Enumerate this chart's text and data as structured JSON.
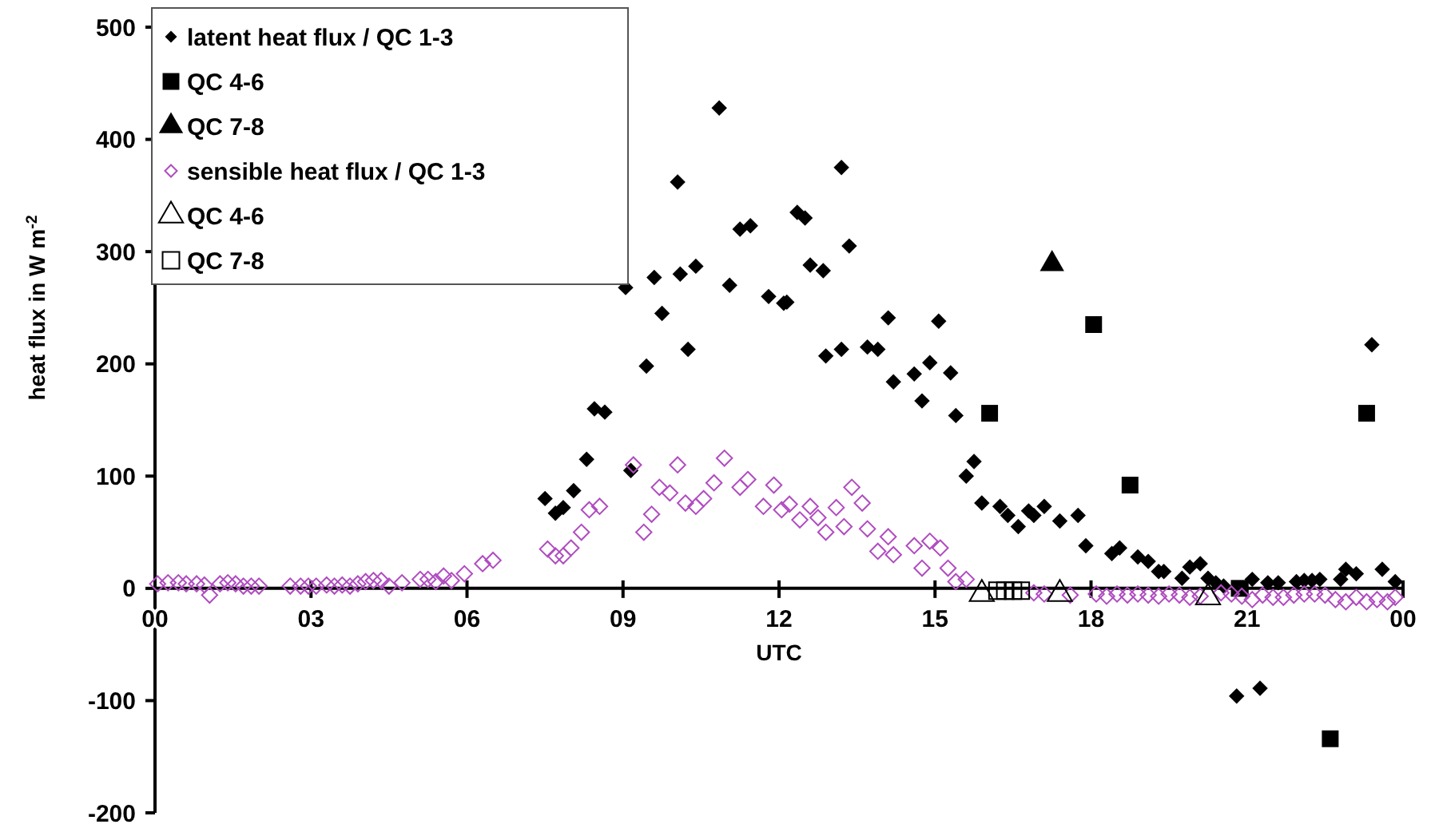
{
  "chart_data": {
    "type": "scatter",
    "xlabel": "UTC",
    "ylabel": "heat flux in W m$^{-2}$",
    "xlim": [
      0,
      24
    ],
    "xticks": [
      {
        "value": 0,
        "label": "00"
      },
      {
        "value": 3,
        "label": "03"
      },
      {
        "value": 6,
        "label": "06"
      },
      {
        "value": 9,
        "label": "09"
      },
      {
        "value": 12,
        "label": "12"
      },
      {
        "value": 15,
        "label": "15"
      },
      {
        "value": 18,
        "label": "18"
      },
      {
        "value": 21,
        "label": "21"
      },
      {
        "value": 24,
        "label": "00"
      }
    ],
    "ylim": [
      -200,
      500
    ],
    "yticks": [
      -200,
      -100,
      0,
      100,
      200,
      300,
      400,
      500
    ],
    "grid": false,
    "legend": "top left",
    "series": [
      {
        "name": "latent heat flux / QC 1-3",
        "color": "#000000",
        "marker": "diamond",
        "x": [
          7.5,
          7.7,
          7.85,
          8.05,
          8.3,
          8.45,
          8.65,
          9.05,
          9.15,
          9.45,
          9.6,
          9.75,
          10.05,
          10.1,
          10.25,
          10.4,
          10.85,
          11.05,
          11.25,
          11.45,
          11.8,
          12.09,
          12.15,
          12.35,
          12.5,
          12.6,
          12.85,
          12.9,
          13.2,
          13.2,
          13.35,
          13.7,
          13.9,
          14.1,
          14.2,
          14.6,
          14.75,
          14.9,
          15.07,
          15.3,
          15.4,
          15.6,
          15.75,
          15.9,
          16.25,
          16.4,
          16.6,
          16.8,
          16.9,
          17.1,
          17.4,
          17.75,
          17.9,
          18.4,
          18.55,
          18.9,
          19.1,
          19.3,
          19.4,
          19.75,
          19.9,
          20.1,
          20.25,
          20.4,
          20.55,
          21.1,
          21.4,
          21.6,
          21.95,
          22.1,
          22.25,
          22.4,
          22.8,
          22.9,
          23.1,
          23.4,
          23.6,
          23.85,
          20.8,
          21.25
        ],
        "values": [
          80,
          67,
          72,
          87,
          115,
          160,
          157,
          268,
          105,
          198,
          277,
          245,
          362,
          280,
          213,
          287,
          428,
          270,
          320,
          323,
          260,
          254,
          255,
          335,
          330,
          288,
          283,
          207,
          213,
          375,
          305,
          215,
          213,
          241,
          184,
          191,
          167,
          201,
          238,
          192,
          154,
          100,
          113,
          76,
          73,
          65,
          55,
          69,
          65,
          73,
          60,
          65,
          38,
          31,
          36,
          28,
          24,
          15,
          15,
          9,
          19,
          22,
          9,
          5,
          2,
          8,
          5,
          5,
          6,
          7,
          7,
          8,
          8,
          17,
          13,
          217,
          17,
          6,
          -96,
          -89
        ]
      },
      {
        "name": "QC 4-6",
        "color": "#000000",
        "marker": "square",
        "x": [
          16.05,
          18.05,
          18.75,
          23.3,
          22.6,
          20.85
        ],
        "values": [
          156,
          235,
          92,
          156,
          -134,
          0
        ]
      },
      {
        "name": "QC 7-8",
        "color": "#000000",
        "marker": "triangle",
        "x": [
          17.25
        ],
        "values": [
          289
        ]
      },
      {
        "name": "sensible heat flux / QC 1-3",
        "color": "#b04cc0",
        "marker": "diamond-open",
        "x": [
          0.05,
          0.25,
          0.45,
          0.6,
          0.8,
          0.95,
          1.05,
          1.25,
          1.4,
          1.55,
          1.7,
          1.85,
          2.0,
          2.6,
          2.8,
          2.95,
          3.1,
          3.3,
          3.45,
          3.6,
          3.75,
          3.9,
          4.05,
          4.2,
          4.35,
          4.5,
          4.75,
          5.1,
          5.25,
          5.4,
          5.55,
          5.7,
          5.95,
          6.3,
          6.5,
          7.55,
          7.7,
          7.85,
          8.0,
          8.2,
          8.35,
          8.55,
          9.2,
          9.4,
          9.55,
          9.7,
          9.9,
          10.05,
          10.2,
          10.4,
          10.55,
          10.75,
          10.95,
          11.25,
          11.4,
          11.7,
          11.9,
          12.05,
          12.2,
          12.4,
          12.6,
          12.75,
          12.9,
          13.1,
          13.25,
          13.4,
          13.6,
          13.7,
          13.9,
          14.1,
          14.2,
          14.6,
          14.75,
          14.9,
          15.1,
          15.25,
          15.4,
          15.6,
          16.9,
          17.1,
          17.6,
          18.1,
          18.3,
          18.5,
          18.7,
          18.9,
          19.1,
          19.3,
          19.5,
          19.7,
          19.9,
          20.1,
          20.5,
          20.7,
          20.9,
          21.1,
          21.3,
          21.5,
          21.7,
          21.9,
          22.1,
          22.3,
          22.5,
          22.7,
          22.9,
          23.1,
          23.3,
          23.5,
          23.7,
          23.85
        ],
        "values": [
          4,
          5,
          5,
          4,
          4,
          3,
          -6,
          4,
          5,
          4,
          2,
          2,
          2,
          2,
          2,
          2,
          2,
          3,
          2,
          3,
          2,
          4,
          6,
          7,
          7,
          2,
          5,
          8,
          8,
          6,
          11,
          7,
          13,
          22,
          25,
          35,
          29,
          29,
          36,
          50,
          70,
          73,
          110,
          50,
          66,
          90,
          85,
          110,
          76,
          73,
          80,
          94,
          116,
          90,
          97,
          73,
          92,
          70,
          75,
          61,
          73,
          63,
          50,
          72,
          55,
          90,
          76,
          53,
          33,
          46,
          30,
          38,
          18,
          42,
          36,
          18,
          6,
          8,
          -4,
          -5,
          -6,
          -5,
          -7,
          -5,
          -6,
          -5,
          -6,
          -7,
          -5,
          -6,
          -8,
          -7,
          -4,
          -5,
          -7,
          -10,
          -6,
          -8,
          -8,
          -6,
          -5,
          -5,
          -6,
          -10,
          -12,
          -8,
          -12,
          -10,
          -12,
          -8
        ]
      },
      {
        "name": "QC 4-6",
        "color": "#000000",
        "marker": "triangle-open",
        "x": [
          15.9,
          17.4,
          20.25
        ],
        "values": [
          -5,
          -5,
          -8
        ]
      },
      {
        "name": "QC 7-8",
        "color": "#000000",
        "marker": "square-open",
        "x": [
          16.2,
          16.35,
          16.5,
          16.65
        ],
        "values": [
          -2,
          -2,
          -2,
          -2
        ]
      }
    ]
  }
}
